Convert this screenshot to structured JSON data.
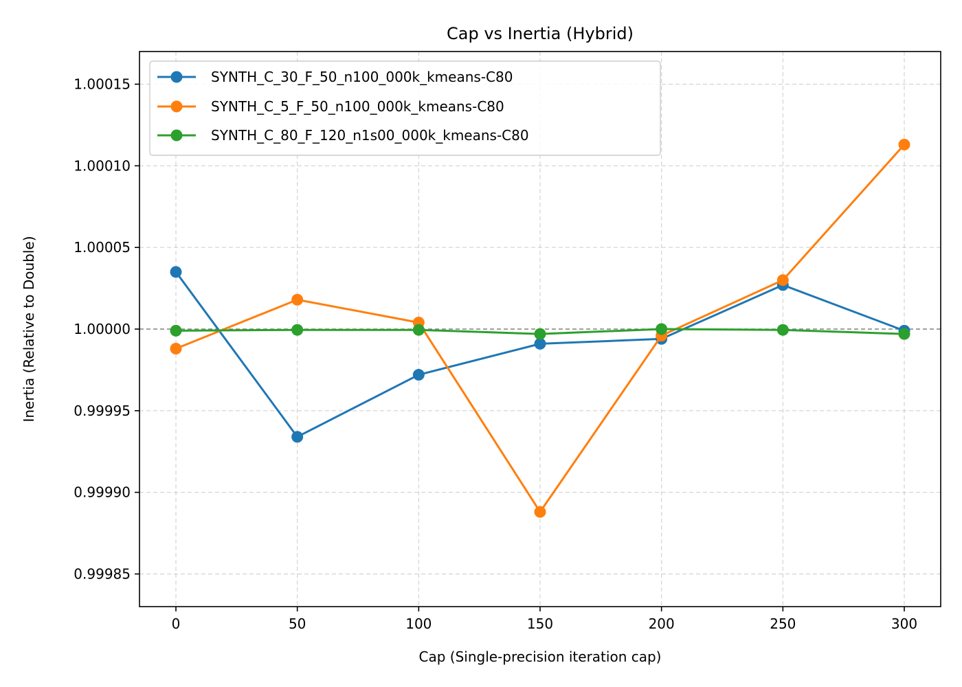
{
  "chart_data": {
    "type": "line",
    "title": "Cap vs Inertia (Hybrid)",
    "xlabel": "Cap (Single-precision iteration cap)",
    "ylabel": "Inertia (Relative to Double)",
    "x": [
      0,
      50,
      100,
      150,
      200,
      250,
      300
    ],
    "xlim": [
      -15,
      315
    ],
    "ylim": [
      0.99983,
      1.00017
    ],
    "xticks": [
      0,
      50,
      100,
      150,
      200,
      250,
      300
    ],
    "xtick_labels": [
      "0",
      "50",
      "100",
      "150",
      "200",
      "250",
      "300"
    ],
    "yticks": [
      0.99985,
      0.9999,
      0.99995,
      1.0,
      1.00005,
      1.0001,
      1.00015
    ],
    "ytick_labels": [
      "0.99985",
      "0.99990",
      "0.99995",
      "1.00000",
      "1.00005",
      "1.00010",
      "1.00015"
    ],
    "reference_line": 1.0,
    "grid": true,
    "legend_position": "upper-left",
    "series": [
      {
        "name": "SYNTH_C_30_F_50_n100_000k_kmeans-C80",
        "color": "#1f77b4",
        "values": [
          1.000035,
          0.999934,
          0.999972,
          0.999991,
          0.999994,
          1.000027,
          0.999999
        ]
      },
      {
        "name": "SYNTH_C_5_F_50_n100_000k_kmeans-C80",
        "color": "#ff7f0e",
        "values": [
          0.999988,
          1.000018,
          1.000004,
          0.999888,
          0.999996,
          1.00003,
          1.000113
        ]
      },
      {
        "name": "SYNTH_C_80_F_120_n1s00_000k_kmeans-C80",
        "color": "#2ca02c",
        "values": [
          0.999999,
          0.9999995,
          0.9999995,
          0.999997,
          1.0,
          0.9999995,
          0.999997
        ]
      }
    ]
  }
}
